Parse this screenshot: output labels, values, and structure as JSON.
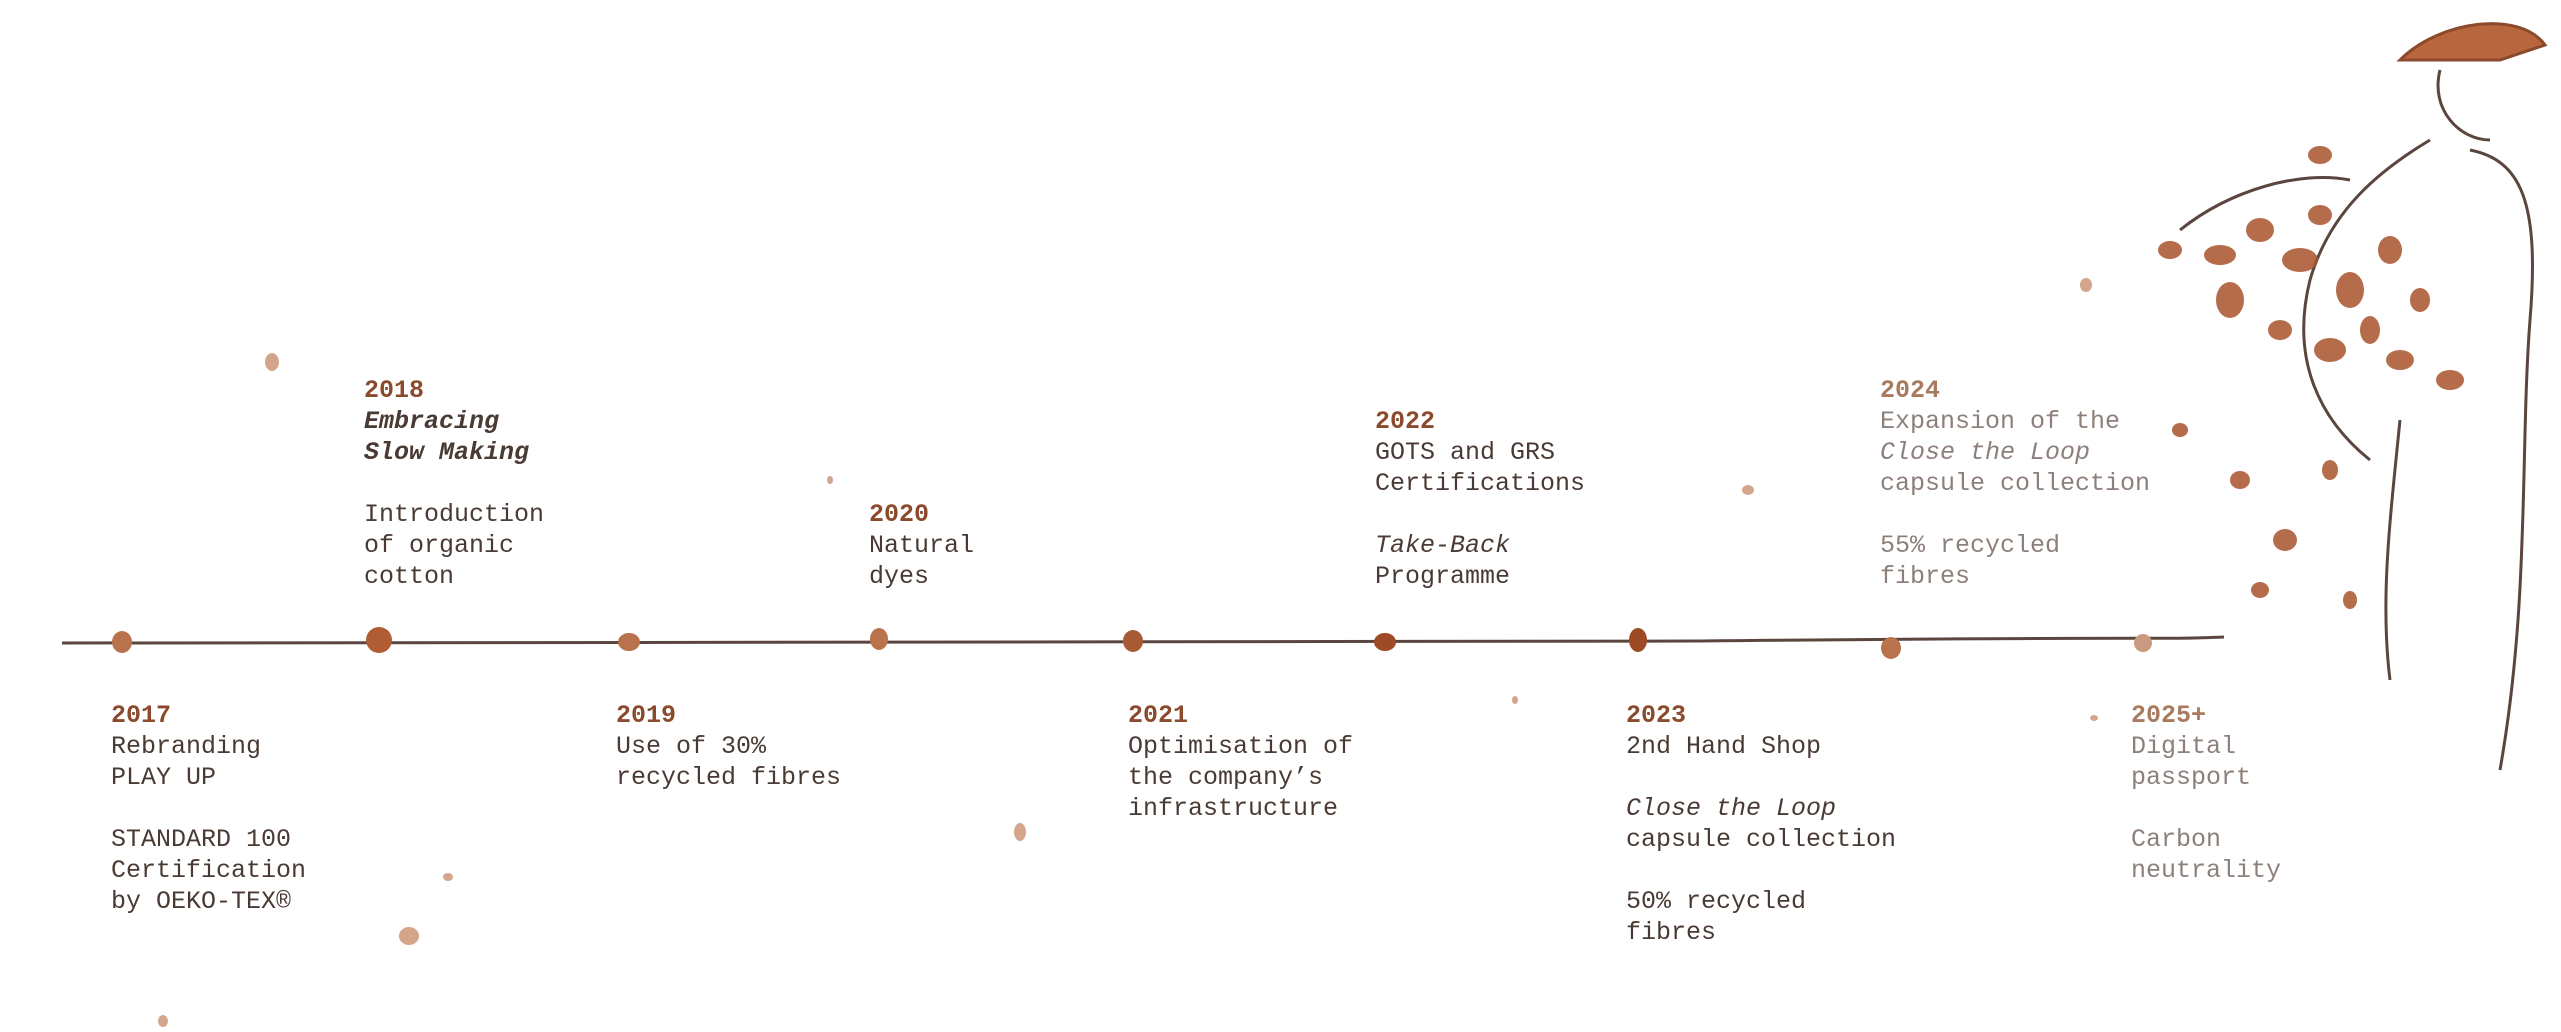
{
  "events": [
    {
      "year": "2017",
      "blocks": [
        [
          "Rebranding",
          "PLAY UP"
        ],
        [
          "STANDARD 100",
          "Certification",
          "by OEKO-TEX®"
        ]
      ]
    },
    {
      "year": "2018",
      "blocks": [
        [
          "Embracing",
          "Slow Making"
        ],
        [
          "Introduction",
          "of organic",
          "cotton"
        ]
      ]
    },
    {
      "year": "2019",
      "blocks": [
        [
          "Use of 30%",
          "recycled fibres"
        ]
      ]
    },
    {
      "year": "2020",
      "blocks": [
        [
          "Natural",
          "dyes"
        ]
      ]
    },
    {
      "year": "2021",
      "blocks": [
        [
          "Optimisation of",
          "the company’s",
          "infrastructure"
        ]
      ]
    },
    {
      "year": "2022",
      "blocks": [
        [
          "GOTS and GRS",
          "Certifications"
        ],
        [
          "Take-Back",
          "Programme"
        ]
      ]
    },
    {
      "year": "2023",
      "blocks": [
        [
          "2nd Hand Shop"
        ],
        [
          "Close the Loop",
          "capsule collection"
        ],
        [
          "50% recycled",
          "fibres"
        ]
      ]
    },
    {
      "year": "2024",
      "blocks": [
        [
          "Expansion of the",
          "Close the Loop",
          "capsule collection"
        ],
        [
          "55% recycled",
          "fibres"
        ]
      ]
    },
    {
      "year": "2025+",
      "blocks": [
        [
          "Digital",
          "passport"
        ],
        [
          "Carbon",
          "neutrality"
        ]
      ]
    }
  ]
}
